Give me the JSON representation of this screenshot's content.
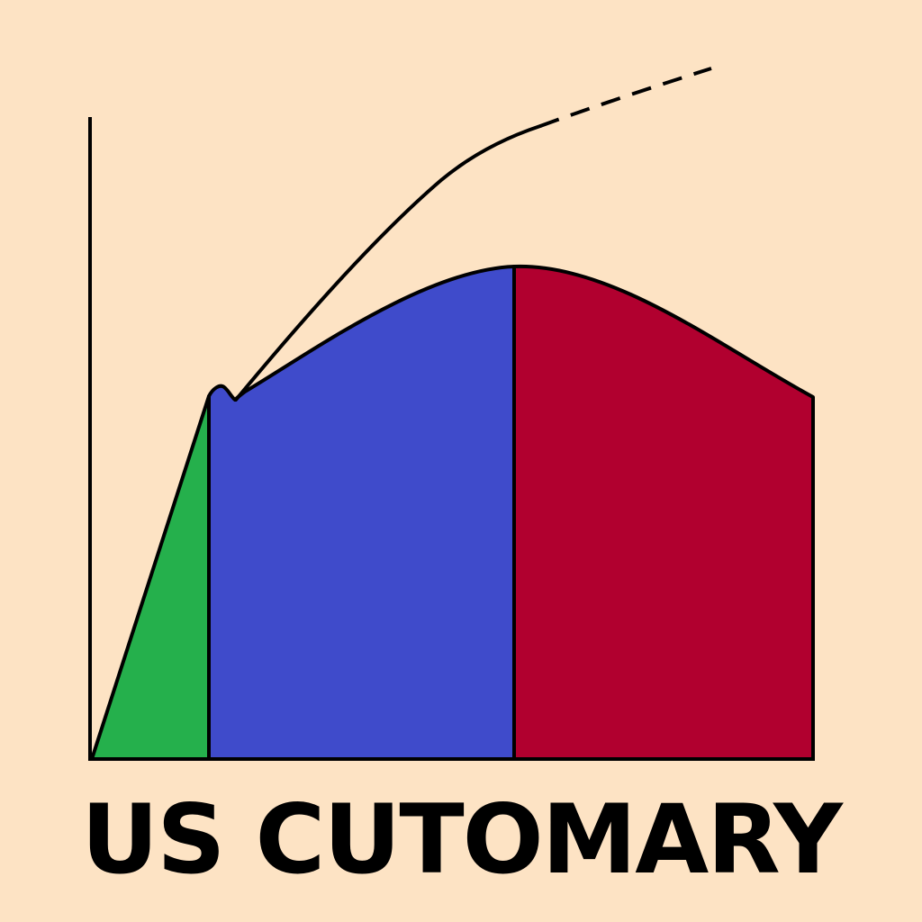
{
  "caption": "US CUTOMARY",
  "colors": {
    "background": "#fde3c4",
    "elastic_region": "#25b04c",
    "strain_hardening_region": "#3f4bcb",
    "necking_region": "#b1002f",
    "stroke": "#000000"
  },
  "chart_data": {
    "type": "area",
    "title": "",
    "xlabel": "",
    "ylabel": "",
    "regions": [
      "elastic",
      "strain-hardening",
      "necking"
    ],
    "curves": [
      "engineering-stress-strain",
      "true-stress-strain"
    ]
  }
}
